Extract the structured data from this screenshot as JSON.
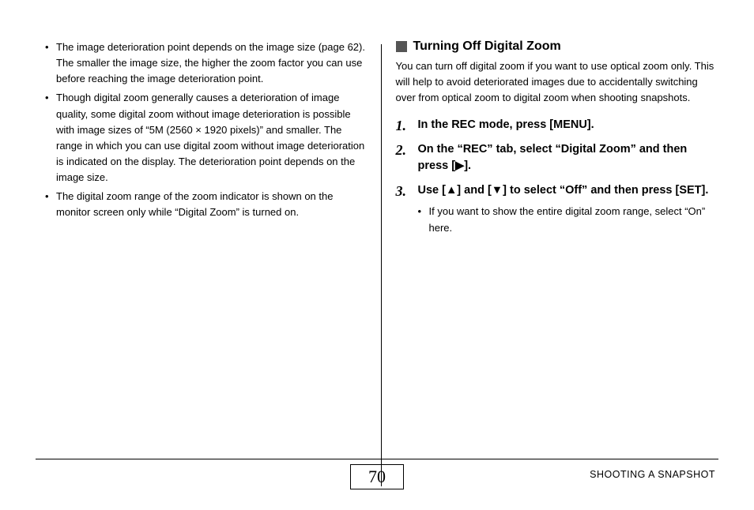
{
  "left": {
    "bullets": [
      "The image deterioration point depends on the image size (page 62). The smaller the image size, the higher the zoom factor you can use before reaching the image deterioration point.",
      "Though digital zoom generally causes a deterioration of image quality, some digital zoom without image deterioration is possible with image sizes of “5M (2560 × 1920 pixels)” and smaller. The range in which you can use digital zoom without image deterioration is indicated on the display. The deterioration point depends on the image size.",
      "The digital zoom range of the zoom indicator is shown on the monitor screen only while “Digital Zoom” is turned on."
    ]
  },
  "right": {
    "heading": "Turning Off Digital Zoom",
    "intro": "You can turn off digital zoom if you want to use optical zoom only. This will help to avoid deteriorated images due to accidentally switching over from optical zoom to digital zoom when shooting snapshots.",
    "steps": [
      {
        "text": "In the REC mode, press [MENU]."
      },
      {
        "text": "On the “REC” tab, select “Digital Zoom” and then press [▶]."
      },
      {
        "text": "Use [▲] and [▼] to select “Off” and then press [SET].",
        "sub": [
          "If you want to show the entire digital zoom range, select “On” here."
        ]
      }
    ]
  },
  "footer": {
    "page": "70",
    "section": "SHOOTING A SNAPSHOT"
  }
}
